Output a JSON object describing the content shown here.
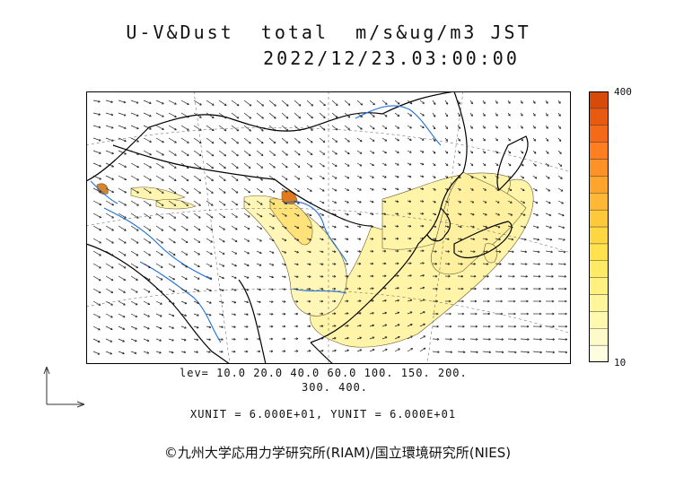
{
  "title_line1": "U-V&Dust  total  m/s&ug/m3 JST",
  "title_line2": "2022/12/23.03:00:00",
  "colorbar": {
    "max_label": "400",
    "min_label": "10",
    "colors": [
      "#fffde0",
      "#fffbc8",
      "#fff9b0",
      "#fff59a",
      "#fff080",
      "#ffea66",
      "#ffe24c",
      "#ffd740",
      "#ffc93a",
      "#ffb833",
      "#ffa52c",
      "#ff9226",
      "#ff7e20",
      "#f56a18",
      "#e85a10",
      "#d84a08"
    ]
  },
  "levels_line1": "lev= 10.0 20.0 40.0 60.0 100. 150. 200.",
  "levels_line2": "300. 400.",
  "units_line": "XUNIT = 6.000E+01, YUNIT = 6.000E+01",
  "copyright": "©九州大学応用力学研究所(RIAM)/国立環境研究所(NIES)"
}
